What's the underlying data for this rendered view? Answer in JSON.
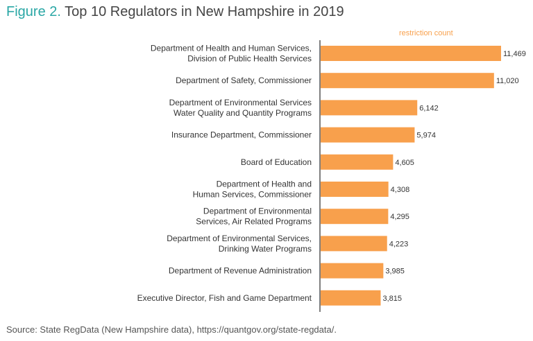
{
  "header": {
    "figure_label": "Figure 2.",
    "title": "Top 10 Regulators in New Hampshire in 2019"
  },
  "legend": {
    "label": "restriction count"
  },
  "source": "Source: State RegData (New Hampshire data), https://quantgov.org/state-regdata/.",
  "colors": {
    "bar": "#f8a04c",
    "axis": "#555555",
    "accent": "#2aa7a5"
  },
  "chart_data": {
    "type": "bar",
    "orientation": "horizontal",
    "title": "Top 10 Regulators in New Hampshire in 2019",
    "series": [
      {
        "name": "restriction count",
        "values": [
          11469,
          11020,
          6142,
          5974,
          4605,
          4308,
          4295,
          4223,
          3985,
          3815
        ]
      }
    ],
    "categories": [
      [
        "Department of Health and Human Services,",
        "Division of Public Health Services"
      ],
      [
        "Department of Safety, Commissioner"
      ],
      [
        "Department of Environmental Services",
        "Water Quality and Quantity Programs"
      ],
      [
        "Insurance Department, Commissioner"
      ],
      [
        "Board of Education"
      ],
      [
        "Department of Health and",
        "Human Services, Commissioner"
      ],
      [
        "Department of Environmental",
        "Services, Air Related Programs"
      ],
      [
        "Department of Environmental Services,",
        "Drinking Water Programs"
      ],
      [
        "Department of Revenue Administration"
      ],
      [
        "Executive Director, Fish and Game Department"
      ]
    ],
    "value_labels": [
      "11,469",
      "11,020",
      "6,142",
      "5,974",
      "4,605",
      "4,308",
      "4,295",
      "4,223",
      "3,985",
      "3,815"
    ],
    "xlim": [
      0,
      11469
    ],
    "grid": false,
    "legend_position": "top-right"
  }
}
